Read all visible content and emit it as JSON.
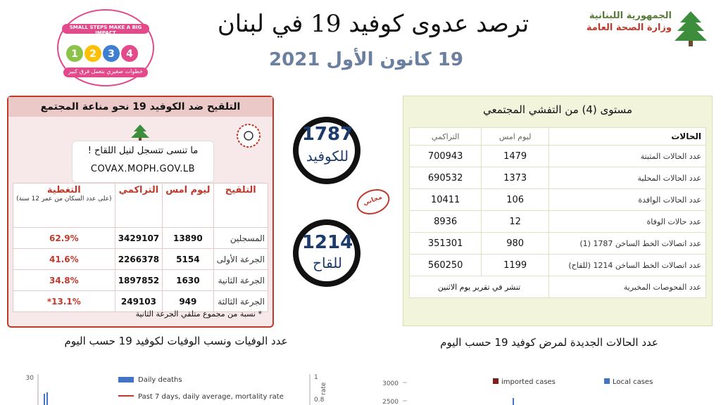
{
  "header": {
    "title": "ترصد عدوى كوفيد 19 في لبنان",
    "date": "19 كانون الأول 2021",
    "ministry_line1": "الجمهورية اللبنانية",
    "ministry_line2": "وزارة الصحة العامة",
    "badge_text": "SMALL STEPS MAKE A BIG IMPACT",
    "badge_subtext": "خطوات صغيري بتعمل فرق كبير"
  },
  "vaccination": {
    "header": "التلقيح ضد الكوفيد 19 نحو مناعة المجتمع",
    "register_text": "ما تنسى تتسجل لنيل اللقاح !",
    "covax_url": "COVAX.MOPH.GOV.LB",
    "columns": {
      "vaccination": "التلقيح",
      "yesterday": "ليوم امس",
      "cumulative": "التراكمي",
      "coverage": "التغطية",
      "coverage_note": "(على عدد السكان من عمر 12 سنة)"
    },
    "rows": [
      {
        "label": "المسجلين",
        "yesterday": "13890",
        "cumulative": "3429107",
        "coverage": "62.9%"
      },
      {
        "label": "الجرعة الأولى",
        "yesterday": "5154",
        "cumulative": "2266378",
        "coverage": "41.6%"
      },
      {
        "label": "الجرعة الثانية",
        "yesterday": "1630",
        "cumulative": "1897852",
        "coverage": "34.8%"
      },
      {
        "label": "الجرعة الثالثة",
        "yesterday": "949",
        "cumulative": "249103",
        "coverage": "13.1%*"
      }
    ],
    "note": "* نسبة من مجموع متلقي الجرعة الثانية"
  },
  "hotlines": {
    "covid": {
      "number": "1787",
      "label": "للكوفيد"
    },
    "vaccine": {
      "number": "1214",
      "label": "للقاح"
    },
    "stamp": "مجاني"
  },
  "cases": {
    "header": "مستوى (4) من التفشي المجتمعي",
    "columns": {
      "cases": "الحالات",
      "yesterday": "ليوم امس",
      "cumulative": "التراكمي"
    },
    "rows": [
      {
        "label": "عدد الحالات المثبتة",
        "yesterday": "1479",
        "cumulative": "700943"
      },
      {
        "label": "عدد الحالات المحلية",
        "yesterday": "1373",
        "cumulative": "690532"
      },
      {
        "label": "عدد الحالات الوافدة",
        "yesterday": "106",
        "cumulative": "10411"
      },
      {
        "label": "عدد حالات الوفاة",
        "yesterday": "12",
        "cumulative": "8936"
      },
      {
        "label": "عدد اتصالات الخط الساخن 1787 (1)",
        "yesterday": "980",
        "cumulative": "351301"
      },
      {
        "label": "عدد اتصالات الخط الساخن 1214 (للقاح)",
        "yesterday": "1199",
        "cumulative": "560250"
      }
    ],
    "lab_label": "عدد الفحوصات المخبرية",
    "lab_value": "تنشر في تقرير يوم الاثنين"
  },
  "captions": {
    "deaths": "عدد الوفيات ونسب الوفيات لكوفيد 19 حسب اليوم",
    "cases": "عدد الحالات الجديدة لمرض كوفيد 19 حسب اليوم"
  },
  "chart_data": [
    {
      "type": "bar",
      "legend": [
        "Daily deaths",
        "Past 7 days, daily average, mortality rate"
      ],
      "y_ticks_left": [
        "30"
      ],
      "y_ticks_right": [
        "1",
        "0.8"
      ],
      "y_right_label": "rate",
      "colors": {
        "Daily deaths": "#4472c4",
        "Past 7 days, daily average, mortality rate": "#c0392b"
      }
    },
    {
      "type": "bar",
      "legend": [
        "imported cases",
        "Local cases"
      ],
      "y_ticks": [
        "3000",
        "2500"
      ],
      "colors": {
        "imported cases": "#7b1f1f",
        "Local cases": "#4472c4"
      }
    }
  ]
}
